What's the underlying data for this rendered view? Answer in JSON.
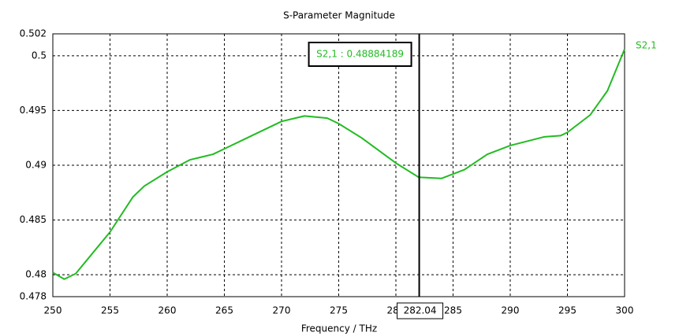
{
  "chart_data": {
    "type": "line",
    "title": "S-Parameter Magnitude",
    "x_label": "Frequency / THz",
    "x": [
      250,
      251,
      252,
      255,
      257,
      258,
      260,
      262,
      264,
      265,
      267,
      270,
      272,
      274,
      275,
      277,
      280,
      282,
      284,
      286,
      288,
      290,
      293,
      294.4,
      295,
      297,
      298.5,
      300
    ],
    "series": [
      {
        "name": "S2,1",
        "color": "#22bb22",
        "values": [
          0.4802,
          0.4796,
          0.4801,
          0.4839,
          0.4871,
          0.4881,
          0.4894,
          0.4905,
          0.491,
          0.4915,
          0.4925,
          0.494,
          0.4945,
          0.4943,
          0.4938,
          0.4925,
          0.4902,
          0.4889,
          0.4888,
          0.4896,
          0.491,
          0.4918,
          0.4926,
          0.4927,
          0.493,
          0.4946,
          0.4968,
          0.5006
        ]
      }
    ],
    "xlim": [
      250,
      300
    ],
    "xticks": [
      250,
      255,
      260,
      265,
      270,
      275,
      280,
      285,
      290,
      295,
      300
    ],
    "ylim": [
      0.478,
      0.502
    ],
    "yticks": [
      0.478,
      0.48,
      0.485,
      0.49,
      0.495,
      0.5,
      0.502
    ],
    "grid": true,
    "marker": {
      "x": 282.04,
      "label": "S2,1 : 0.48884189"
    }
  }
}
